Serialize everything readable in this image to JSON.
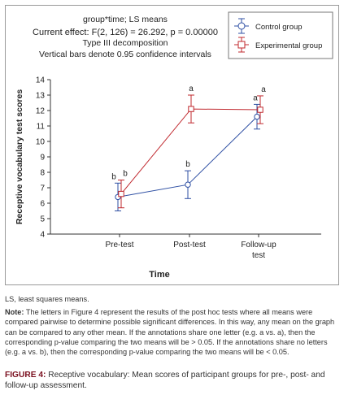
{
  "chart_data": {
    "type": "line",
    "header_lines": [
      "group*time; LS means",
      "Current effect: F(2, 126) = 26.292, p = 0.00000",
      "Type III decomposition",
      "Vertical bars denote 0.95 confidence intervals"
    ],
    "categories": [
      "Pre-test",
      "Post-test",
      "Follow-up test"
    ],
    "xlabel": "Time",
    "ylabel": "Receptive vocabulary test scores",
    "ylim": [
      4,
      14
    ],
    "yticks": [
      4,
      5,
      6,
      7,
      8,
      9,
      10,
      11,
      12,
      13,
      14
    ],
    "legend_position": "top-right",
    "series": [
      {
        "name": "Control group",
        "color": "#2e4fa3",
        "marker": "circle",
        "values": [
          6.4,
          7.2,
          11.6
        ],
        "ci_low": [
          5.5,
          6.3,
          10.8
        ],
        "ci_high": [
          7.3,
          8.1,
          12.4
        ],
        "labels": [
          "b",
          "b",
          "a"
        ]
      },
      {
        "name": "Experimental group",
        "color": "#c0282e",
        "marker": "square",
        "values": [
          6.6,
          12.1,
          12.05
        ],
        "ci_low": [
          5.7,
          11.2,
          11.15
        ],
        "ci_high": [
          7.5,
          13.0,
          12.95
        ],
        "labels": [
          "b",
          "a",
          "a"
        ]
      }
    ]
  },
  "notes": {
    "abbrev": "LS, least squares means.",
    "note_label": "Note:",
    "note_text": " The letters in Figure 4 represent the results of the post hoc tests where all means were compared pairwise to determine possible significant differences. In this way, any mean on the graph can be compared to any other mean. If the annotations share one letter (e.g. a vs. a), then the corresponding p-value comparing the two means will be > 0.05. If the annotations share no letters (e.g. a vs. b), then the corresponding p-value comparing the two means will be < 0.05."
  },
  "caption": {
    "label": "FIGURE 4:",
    "text": " Receptive vocabulary: Mean scores of participant groups for pre-, post- and follow-up assessment."
  }
}
